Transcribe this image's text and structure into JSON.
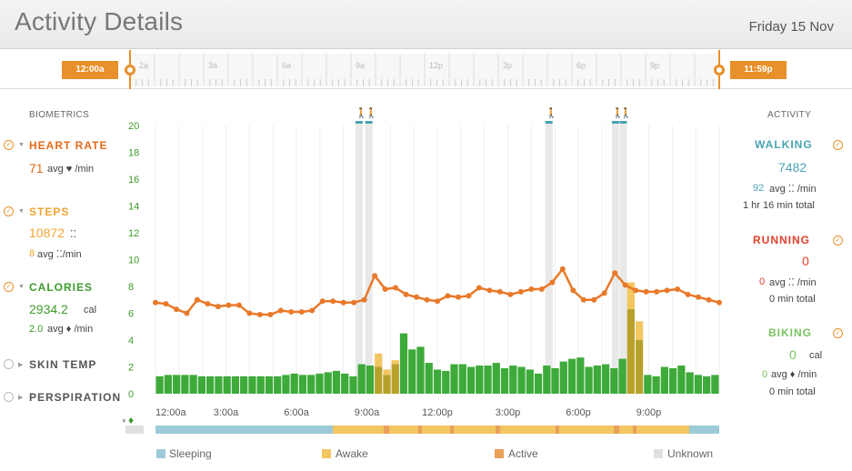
{
  "header": {
    "title": "Activity Details",
    "date": "Friday 15 Nov"
  },
  "timeline": {
    "start_label": "12:00a",
    "end_label": "11:59p",
    "tick_labels": [
      "2a",
      "3a",
      "6a",
      "9a",
      "12p",
      "3p",
      "6p",
      "9p"
    ]
  },
  "biometrics": {
    "title": "BIOMETRICS",
    "heart_rate": {
      "name": "HEART RATE",
      "value": "71",
      "sub": "avg ♥ /min",
      "color": "#e46b1a"
    },
    "steps": {
      "name": "STEPS",
      "value": "10872",
      "value_suffix": "⁚⁚",
      "rate": "8",
      "sub": "avg ⁚⁚/min",
      "color": "#f0a531"
    },
    "calories": {
      "name": "CALORIES",
      "value": "2934.2",
      "unit": "cal",
      "rate": "2.0",
      "sub": "avg ♦ /min",
      "color": "#3e9a2c"
    },
    "skin_temp": {
      "name": "SKIN TEMP"
    },
    "perspiration": {
      "name": "PERSPIRATION"
    }
  },
  "activity": {
    "title": "ACTIVITY",
    "walking": {
      "name": "WALKING",
      "value": "7482",
      "rate": "92",
      "sub": "avg ⁚⁚ /min",
      "total": "1 hr 16 min total",
      "color": "#4aa3b4"
    },
    "running": {
      "name": "RUNNING",
      "value": "0",
      "rate": "0",
      "sub": "avg ⁚⁚ /min",
      "total": "0 min total",
      "color": "#e0402a"
    },
    "biking": {
      "name": "BIKING",
      "value": "0",
      "unit": "cal",
      "rate": "0",
      "sub": "avg ♦ /min",
      "total": "0 min total",
      "color": "#79c35f"
    }
  },
  "legend": {
    "sleeping": {
      "label": "Sleeping",
      "color": "#9ccad8"
    },
    "awake": {
      "label": "Awake",
      "color": "#f2c661"
    },
    "active": {
      "label": "Active",
      "color": "#e8a05a"
    },
    "unknown": {
      "label": "Unknown",
      "color": "#e0e0e0"
    }
  },
  "chart_data": {
    "type": "bar",
    "x_tick_labels": [
      "12:00a",
      "3:00a",
      "6:00a",
      "9:00a",
      "12:00p",
      "3:00p",
      "6:00p",
      "9:00p"
    ],
    "y_ticks": [
      0,
      2,
      4,
      6,
      8,
      10,
      12,
      14,
      16,
      18,
      20
    ],
    "ylim": [
      0,
      20
    ],
    "bar_series": [
      1.3,
      1.4,
      1.4,
      1.4,
      1.4,
      1.3,
      1.3,
      1.3,
      1.3,
      1.3,
      1.3,
      1.3,
      1.3,
      1.3,
      1.3,
      1.4,
      1.5,
      1.4,
      1.4,
      1.5,
      1.6,
      1.7,
      1.5,
      1.3,
      2.2,
      2.1,
      2.0,
      1.4,
      2.2,
      4.5,
      3.3,
      3.5,
      2.3,
      1.8,
      1.7,
      2.2,
      2.2,
      2.0,
      2.1,
      2.1,
      2.3,
      1.9,
      2.1,
      2.0,
      1.8,
      1.5,
      2.1,
      1.9,
      2.4,
      2.6,
      2.7,
      2.0,
      2.1,
      2.2,
      1.9,
      2.6,
      6.3,
      4.0,
      1.4,
      1.3,
      2.0,
      1.9,
      2.1,
      1.6,
      1.4,
      1.3,
      1.4
    ],
    "bar_overlay": [
      0,
      0,
      0,
      0,
      0,
      0,
      0,
      0,
      0,
      0,
      0,
      0,
      0,
      0,
      0,
      0,
      0,
      0,
      0,
      0,
      0,
      0,
      0,
      0,
      0,
      0,
      1.0,
      0.4,
      0.3,
      0,
      0,
      0,
      0,
      0,
      0,
      0,
      0,
      0,
      0,
      0,
      0,
      0,
      0,
      0,
      0,
      0,
      0,
      0,
      0,
      0,
      0,
      0,
      0,
      0,
      0,
      0,
      2.0,
      1.4,
      0,
      0,
      0,
      0,
      0,
      0,
      0,
      0,
      0
    ],
    "heart_rate_series": [
      6.8,
      6.7,
      6.3,
      6.0,
      7.0,
      6.7,
      6.5,
      6.6,
      6.6,
      6.0,
      5.9,
      5.9,
      6.2,
      6.1,
      6.1,
      6.2,
      6.9,
      6.9,
      6.8,
      6.8,
      7.0,
      8.8,
      7.8,
      7.9,
      7.4,
      7.2,
      7.0,
      6.9,
      7.3,
      7.2,
      7.3,
      7.9,
      7.7,
      7.6,
      7.4,
      7.6,
      7.8,
      7.8,
      8.3,
      9.3,
      7.7,
      7.0,
      7.0,
      7.5,
      9.0,
      8.1,
      7.7,
      7.6,
      7.6,
      7.7,
      7.8,
      7.4,
      7.2,
      7.0,
      6.8
    ],
    "walking_marks": [
      {
        "time": "8:40a"
      },
      {
        "time": "9:05a"
      },
      {
        "time": "4:45p"
      },
      {
        "time": "7:35p"
      },
      {
        "time": "7:55p"
      }
    ]
  }
}
